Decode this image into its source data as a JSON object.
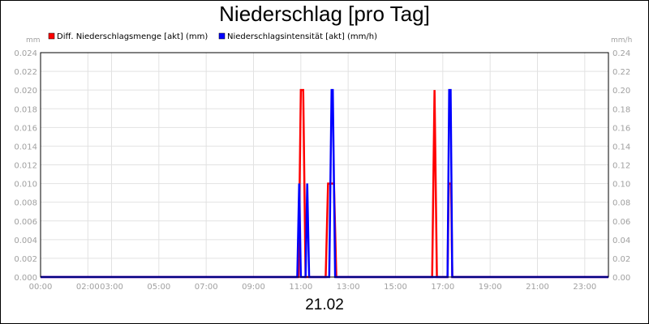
{
  "chart_data": {
    "type": "line",
    "title": "Niederschlag [pro Tag]",
    "date_label": "21.02",
    "y_left_unit": "mm",
    "y_right_unit": "mm/h",
    "y_left_ticks": [
      "0.000",
      "0.002",
      "0.004",
      "0.006",
      "0.008",
      "0.010",
      "0.012",
      "0.014",
      "0.016",
      "0.018",
      "0.020",
      "0.022",
      "0.024"
    ],
    "y_right_ticks": [
      "0.00",
      "0.02",
      "0.04",
      "0.06",
      "0.08",
      "0.10",
      "0.12",
      "0.14",
      "0.16",
      "0.18",
      "0.20",
      "0.22",
      "0.24"
    ],
    "y_left_range": [
      0,
      0.024
    ],
    "y_right_range": [
      0,
      0.24
    ],
    "x_range_hours": [
      0,
      24
    ],
    "x_ticks": [
      {
        "hour": 0,
        "label": "00:00"
      },
      {
        "hour": 2,
        "label": "02:00"
      },
      {
        "hour": 3,
        "label": "03:00"
      },
      {
        "hour": 5,
        "label": "05:00"
      },
      {
        "hour": 7,
        "label": "07:00"
      },
      {
        "hour": 9,
        "label": "09:00"
      },
      {
        "hour": 11,
        "label": "11:00"
      },
      {
        "hour": 13,
        "label": "13:00"
      },
      {
        "hour": 15,
        "label": "15:00"
      },
      {
        "hour": 17,
        "label": "17:00"
      },
      {
        "hour": 19,
        "label": "19:00"
      },
      {
        "hour": 21,
        "label": "21:00"
      },
      {
        "hour": 23,
        "label": "23:00"
      }
    ],
    "legend_placement": "top-left",
    "grid": true,
    "series": [
      {
        "name": "Diff. Niederschlagsmenge [akt] (mm)",
        "color": "#ff0000",
        "axis": "left",
        "points": [
          [
            0,
            0
          ],
          [
            10.9,
            0
          ],
          [
            11.0,
            0.02
          ],
          [
            11.1,
            0.02
          ],
          [
            11.2,
            0
          ],
          [
            12.05,
            0
          ],
          [
            12.15,
            0.01
          ],
          [
            12.4,
            0.01
          ],
          [
            12.5,
            0
          ],
          [
            16.55,
            0
          ],
          [
            16.65,
            0.02
          ],
          [
            16.75,
            0
          ],
          [
            17.2,
            0
          ],
          [
            17.25,
            0.01
          ],
          [
            17.35,
            0.01
          ],
          [
            17.4,
            0
          ],
          [
            24,
            0
          ]
        ]
      },
      {
        "name": "Niederschlagsintensität [akt] (mm/h)",
        "color": "#0000ff",
        "axis": "right",
        "points": [
          [
            0,
            0
          ],
          [
            10.85,
            0
          ],
          [
            10.93,
            0.1
          ],
          [
            11.0,
            0
          ],
          [
            11.2,
            0
          ],
          [
            11.27,
            0.1
          ],
          [
            11.35,
            0
          ],
          [
            12.2,
            0
          ],
          [
            12.3,
            0.2
          ],
          [
            12.35,
            0.2
          ],
          [
            12.45,
            0
          ],
          [
            17.2,
            0
          ],
          [
            17.27,
            0.2
          ],
          [
            17.33,
            0.2
          ],
          [
            17.4,
            0
          ],
          [
            24,
            0
          ]
        ]
      }
    ]
  }
}
